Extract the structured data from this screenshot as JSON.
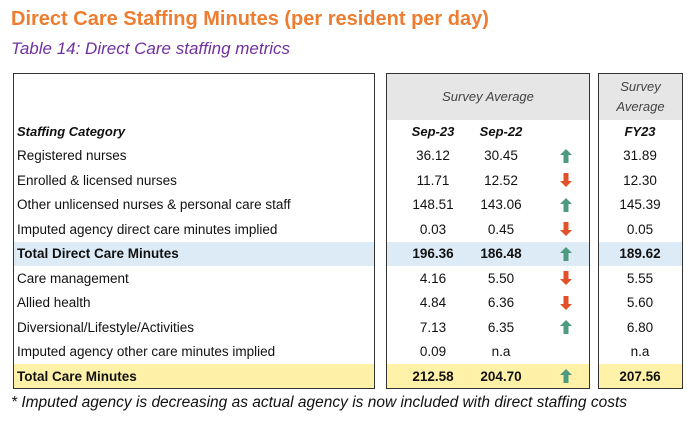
{
  "title": "Direct Care Staffing Minutes (per resident per day)",
  "subtitle": "Table 14: Direct Care staffing metrics",
  "footnote": "* Imputed agency is decreasing as actual agency is now included with direct staffing costs",
  "colors": {
    "up": "#4E9A80",
    "down": "#E0512A",
    "title": "#ED7D31",
    "subtitle": "#7030A0",
    "total_highlight": "#DDEBF7",
    "grand_total_highlight": "#FFF2A8"
  },
  "table": {
    "survey_average_header": "Survey Average",
    "fy_header": "Survey Average",
    "category_header": "Staffing Category",
    "columns": [
      "Sep-23",
      "Sep-22",
      "FY23"
    ],
    "rows": [
      {
        "category": "Registered nurses",
        "sep23": "36.12",
        "sep22": "30.45",
        "trend": "up",
        "fy23": "31.89"
      },
      {
        "category": "Enrolled & licensed nurses",
        "sep23": "11.71",
        "sep22": "12.52",
        "trend": "down",
        "fy23": "12.30"
      },
      {
        "category": "Other unlicensed nurses & personal care staff",
        "sep23": "148.51",
        "sep22": "143.06",
        "trend": "up",
        "fy23": "145.39"
      },
      {
        "category": "Imputed agency direct care minutes implied",
        "sep23": "0.03",
        "sep22": "0.45",
        "trend": "down",
        "fy23": "0.05"
      },
      {
        "category": "Total Direct Care Minutes",
        "sep23": "196.36",
        "sep22": "186.48",
        "trend": "up",
        "fy23": "189.62",
        "style": "blue"
      },
      {
        "category": "Care management",
        "sep23": "4.16",
        "sep22": "5.50",
        "trend": "down",
        "fy23": "5.55"
      },
      {
        "category": "Allied health",
        "sep23": "4.84",
        "sep22": "6.36",
        "trend": "down",
        "fy23": "5.60"
      },
      {
        "category": "Diversional/Lifestyle/Activities",
        "sep23": "7.13",
        "sep22": "6.35",
        "trend": "up",
        "fy23": "6.80"
      },
      {
        "category": "Imputed agency other care minutes implied",
        "sep23": "0.09",
        "sep22": "n.a",
        "trend": "",
        "fy23": "n.a"
      },
      {
        "category": "Total Care Minutes",
        "sep23": "212.58",
        "sep22": "204.70",
        "trend": "up",
        "fy23": "207.56",
        "style": "yellow"
      }
    ]
  }
}
